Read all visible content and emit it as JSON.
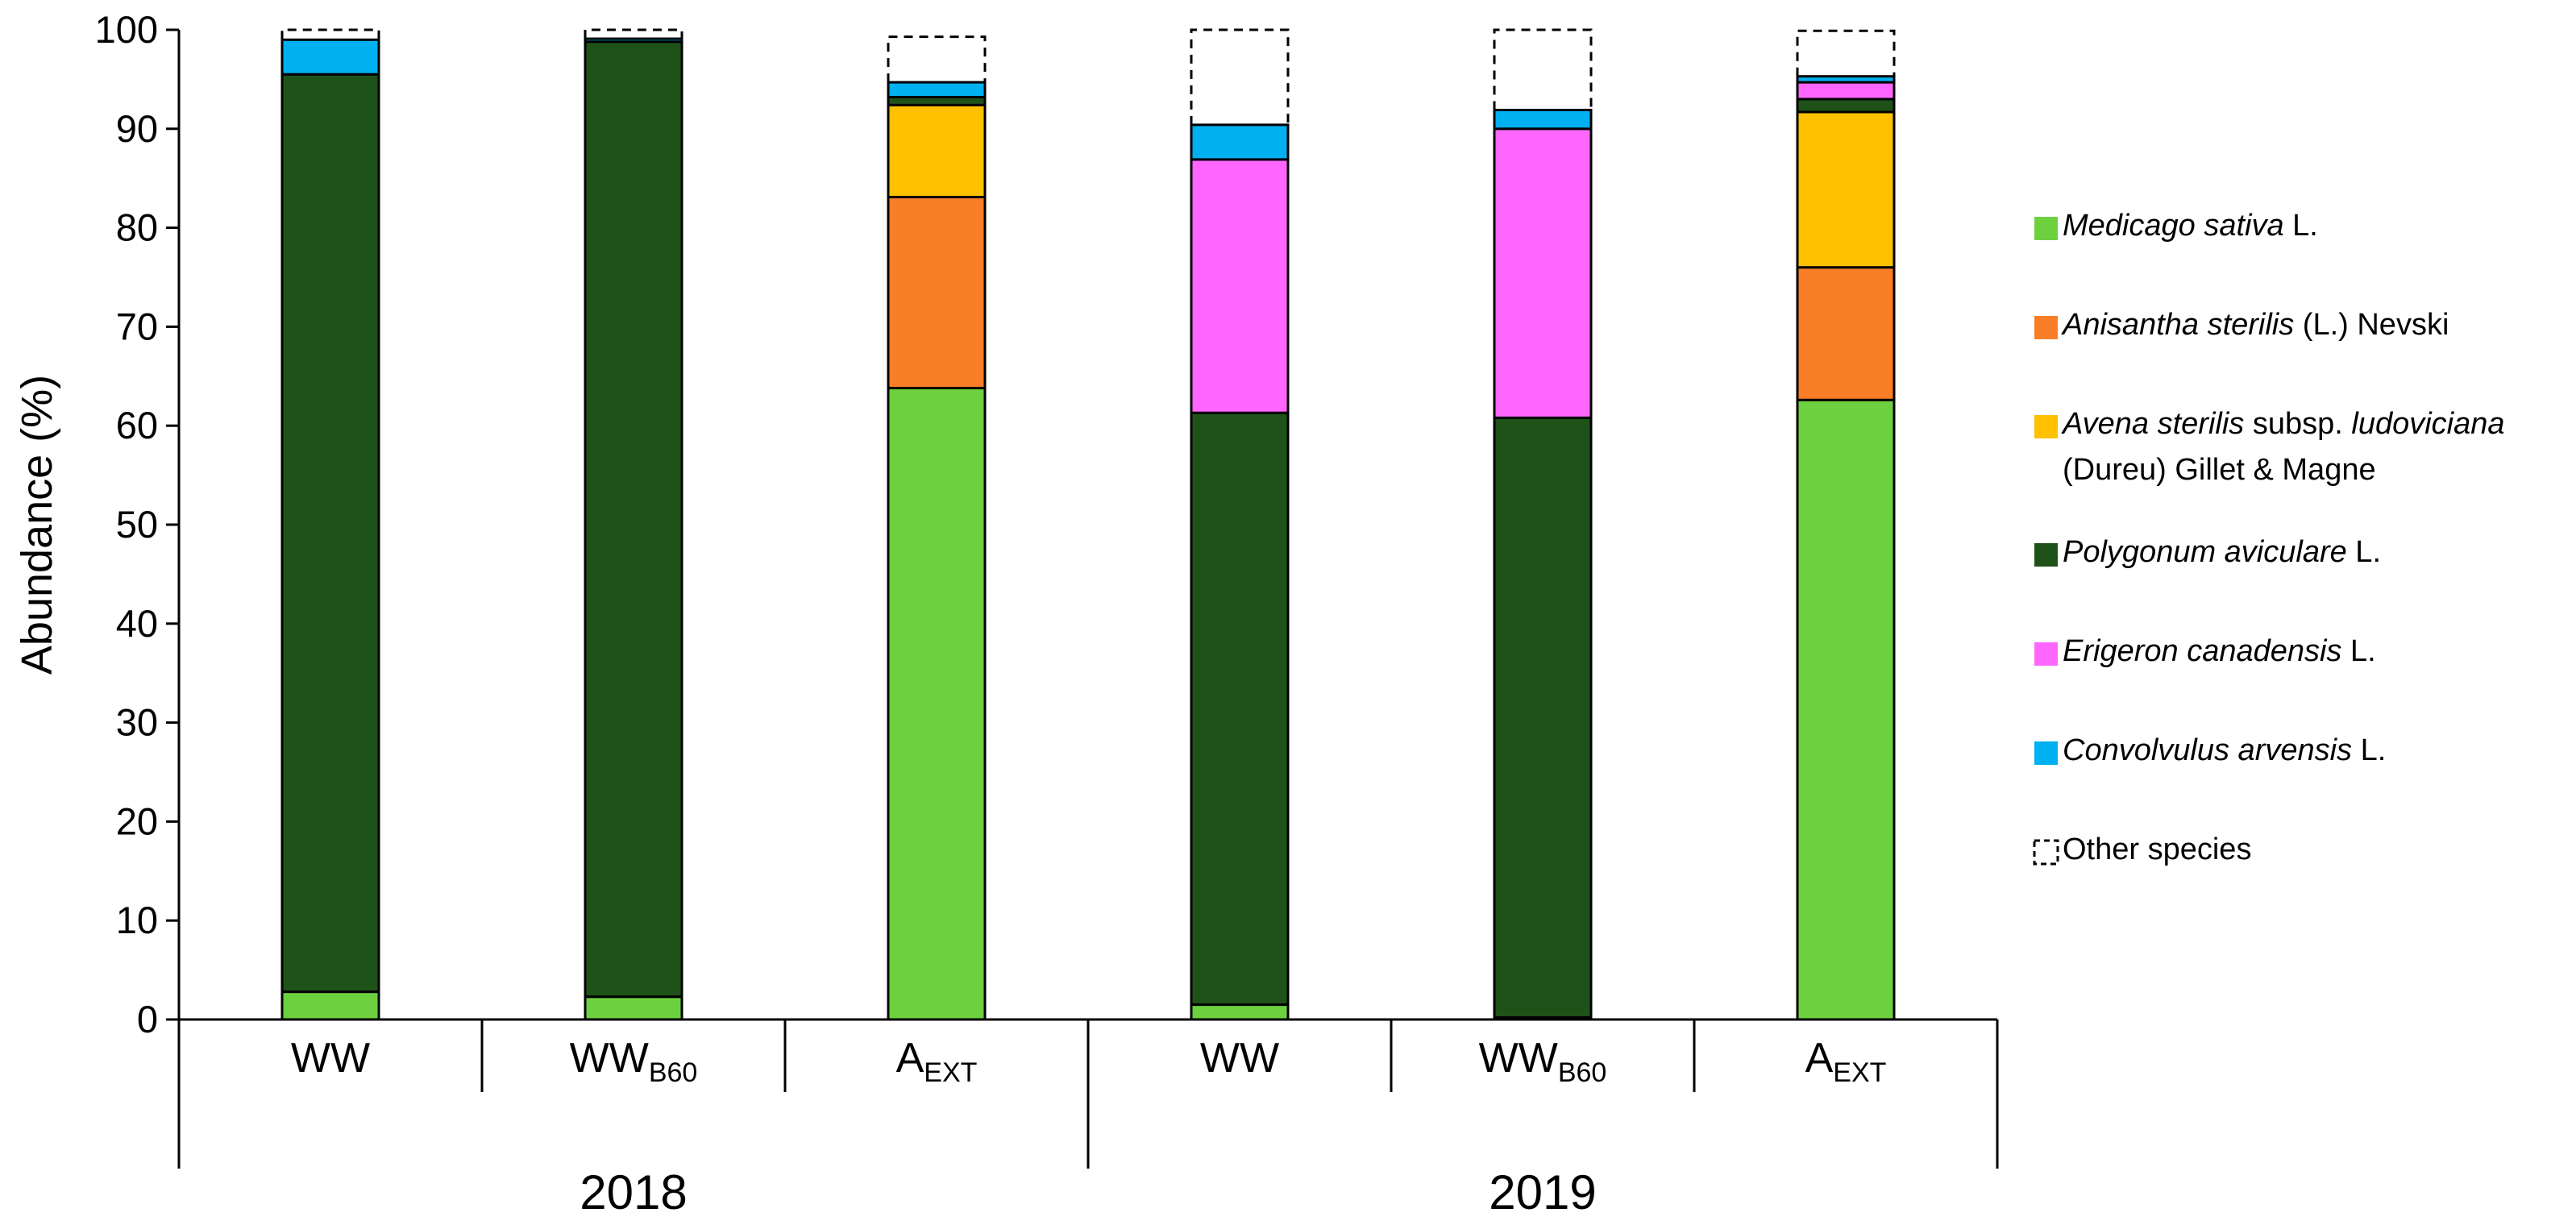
{
  "chart_data": {
    "type": "stacked-bar",
    "title": "",
    "xlabel": "",
    "ylabel": "Abundance (%)",
    "ylim": [
      0,
      100
    ],
    "yticks": [
      0,
      10,
      20,
      30,
      40,
      50,
      60,
      70,
      80,
      90,
      100
    ],
    "grid": false,
    "legend_position": "right",
    "groups": [
      {
        "label": "2018",
        "categories": [
          {
            "main": "WW",
            "sub": ""
          },
          {
            "main": "WW",
            "sub": "B60"
          },
          {
            "main": "A",
            "sub": "EXT"
          }
        ]
      },
      {
        "label": "2019",
        "categories": [
          {
            "main": "WW",
            "sub": ""
          },
          {
            "main": "WW",
            "sub": "B60"
          },
          {
            "main": "A",
            "sub": "EXT"
          }
        ]
      }
    ],
    "series": [
      {
        "name": "Medicago sativa L.",
        "legend_parts": [
          {
            "text": "Medicago sativa",
            "italic": true
          },
          {
            "text": " L.",
            "italic": false
          }
        ],
        "color": "#6DD13F",
        "values": [
          2.8,
          2.3,
          63.8,
          1.5,
          0.2,
          62.6
        ]
      },
      {
        "name": "Anisantha sterilis (L.) Nevski",
        "legend_parts": [
          {
            "text": "Anisantha sterilis",
            "italic": true
          },
          {
            "text": " (L.) Nevski",
            "italic": false
          }
        ],
        "color": "#FA7D27",
        "values": [
          0,
          0,
          19.3,
          0,
          0,
          13.4
        ]
      },
      {
        "name": "Avena sterilis subsp. ludoviciana (Dureu) Gillet & Magne",
        "legend_parts": [
          {
            "text": "Avena sterilis",
            "italic": true
          },
          {
            "text": " subsp. ",
            "italic": false
          },
          {
            "text": "ludoviciana",
            "italic": true
          }
        ],
        "legend_line2": "(Dureu) Gillet & Magne",
        "color": "#FFC000",
        "values": [
          0,
          0,
          9.3,
          0,
          0,
          15.7
        ]
      },
      {
        "name": "Polygonum aviculare L.",
        "legend_parts": [
          {
            "text": "Polygonum aviculare",
            "italic": true
          },
          {
            "text": " L.",
            "italic": false
          }
        ],
        "color": "#1F5219",
        "values": [
          92.7,
          96.5,
          0.8,
          59.8,
          60.6,
          1.3
        ]
      },
      {
        "name": "Erigeron canadensis L.",
        "legend_parts": [
          {
            "text": "Erigeron canadensis",
            "italic": true
          },
          {
            "text": " L.",
            "italic": false
          }
        ],
        "color": "#FF66FF",
        "values": [
          0,
          0,
          0,
          25.6,
          29.2,
          1.7
        ]
      },
      {
        "name": "Convolvulus arvensis L.",
        "legend_parts": [
          {
            "text": "Convolvulus arvensis",
            "italic": true
          },
          {
            "text": " L.",
            "italic": false
          }
        ],
        "color": "#00B0F0",
        "values": [
          3.5,
          0.3,
          1.5,
          3.5,
          1.9,
          0.6
        ]
      },
      {
        "name": "Other species",
        "legend_parts": [
          {
            "text": "Other species",
            "italic": false
          }
        ],
        "color": "none",
        "dashed": true,
        "values": [
          1.0,
          0.9,
          4.6,
          9.6,
          8.1,
          4.6
        ]
      }
    ]
  }
}
